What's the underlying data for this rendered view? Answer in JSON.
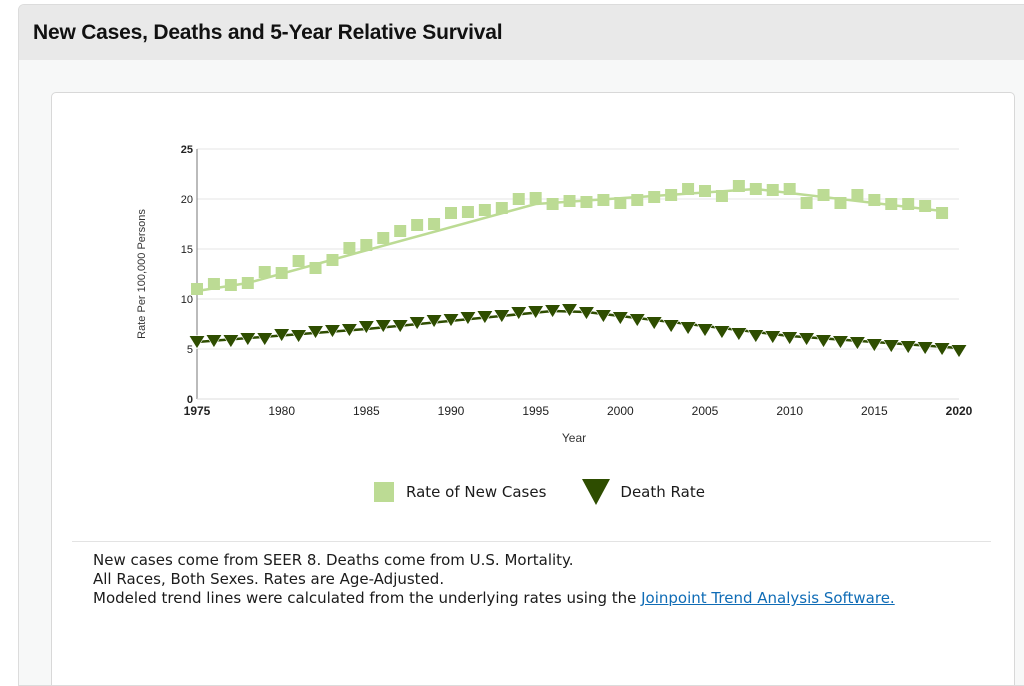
{
  "panel": {
    "title": "New Cases, Deaths and 5-Year Relative Survival"
  },
  "legend": {
    "new_cases_label": "Rate of New Cases",
    "death_rate_label": "Death Rate"
  },
  "notes": {
    "line1": "New cases come from SEER 8. Deaths come from U.S. Mortality.",
    "line2": "All Races, Both Sexes. Rates are Age-Adjusted.",
    "line3_prefix": "Modeled trend lines were calculated from the underlying rates using the ",
    "link_text": "Joinpoint Trend Analysis Software."
  },
  "colors": {
    "new_cases": "#bcdb94",
    "death_rate": "#2e4d00",
    "link": "#0f6cb6",
    "grid": "#e6e6e6"
  },
  "chart_data": {
    "type": "scatter",
    "title": "",
    "xlabel": "Year",
    "ylabel": "Rate Per 100,000 Persons",
    "xlim": [
      1975,
      2020
    ],
    "ylim": [
      0,
      25
    ],
    "x_ticks": [
      "1975",
      "1980",
      "1985",
      "1990",
      "1995",
      "2000",
      "2005",
      "2010",
      "2015",
      "2020"
    ],
    "y_ticks": [
      "0",
      "5",
      "10",
      "15",
      "20",
      "25"
    ],
    "grid": true,
    "legend_position": "bottom-center",
    "series": [
      {
        "name": "Rate of New Cases",
        "marker": "square",
        "x": [
          1975,
          1976,
          1977,
          1978,
          1979,
          1980,
          1981,
          1982,
          1983,
          1984,
          1985,
          1986,
          1987,
          1988,
          1989,
          1990,
          1991,
          1992,
          1993,
          1994,
          1995,
          1996,
          1997,
          1998,
          1999,
          2000,
          2001,
          2002,
          2003,
          2004,
          2005,
          2006,
          2007,
          2008,
          2009,
          2010,
          2011,
          2012,
          2013,
          2014,
          2015,
          2016,
          2017,
          2018,
          2019
        ],
        "values": [
          11.0,
          11.5,
          11.4,
          11.6,
          12.7,
          12.6,
          13.8,
          13.1,
          13.9,
          15.1,
          15.4,
          16.1,
          16.8,
          17.4,
          17.5,
          18.6,
          18.7,
          18.9,
          19.1,
          20.0,
          20.1,
          19.5,
          19.8,
          19.7,
          19.9,
          19.6,
          19.9,
          20.2,
          20.4,
          21.0,
          20.8,
          20.3,
          21.3,
          21.0,
          20.9,
          21.0,
          19.6,
          20.4,
          19.6,
          20.4,
          19.9,
          19.5,
          19.5,
          19.3,
          18.6
        ],
        "trend": [
          {
            "x": 1975,
            "y": 10.8
          },
          {
            "x": 1978,
            "y": 11.6
          },
          {
            "x": 1984,
            "y": 14.4
          },
          {
            "x": 1995,
            "y": 19.5
          },
          {
            "x": 2008,
            "y": 21.0
          },
          {
            "x": 2019,
            "y": 18.8
          }
        ]
      },
      {
        "name": "Death Rate",
        "marker": "triangle-down",
        "x": [
          1975,
          1976,
          1977,
          1978,
          1979,
          1980,
          1981,
          1982,
          1983,
          1984,
          1985,
          1986,
          1987,
          1988,
          1989,
          1990,
          1991,
          1992,
          1993,
          1994,
          1995,
          1996,
          1997,
          1998,
          1999,
          2000,
          2001,
          2002,
          2003,
          2004,
          2005,
          2006,
          2007,
          2008,
          2009,
          2010,
          2011,
          2012,
          2013,
          2014,
          2015,
          2016,
          2017,
          2018,
          2019,
          2020
        ],
        "values": [
          5.9,
          6.0,
          6.0,
          6.2,
          6.2,
          6.6,
          6.5,
          6.9,
          7.0,
          7.1,
          7.4,
          7.5,
          7.5,
          7.8,
          8.0,
          8.1,
          8.3,
          8.4,
          8.5,
          8.8,
          8.9,
          9.0,
          9.1,
          8.8,
          8.5,
          8.3,
          8.1,
          7.8,
          7.5,
          7.3,
          7.1,
          6.9,
          6.7,
          6.5,
          6.4,
          6.3,
          6.2,
          6.0,
          5.9,
          5.8,
          5.6,
          5.5,
          5.4,
          5.3,
          5.2,
          5.0
        ],
        "trend": [
          {
            "x": 1975,
            "y": 5.7
          },
          {
            "x": 1985,
            "y": 7.0
          },
          {
            "x": 1996,
            "y": 8.8
          },
          {
            "x": 1998,
            "y": 8.7
          },
          {
            "x": 2010,
            "y": 6.3
          },
          {
            "x": 2020,
            "y": 5.1
          }
        ]
      }
    ]
  }
}
